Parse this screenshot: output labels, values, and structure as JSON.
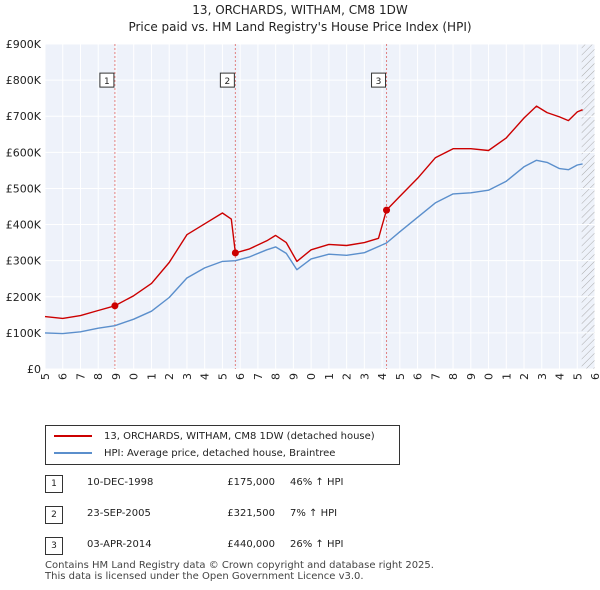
{
  "chart_data": {
    "type": "line",
    "title": "13, ORCHARDS, WITHAM, CM8 1DW",
    "subtitle": "Price paid vs. HM Land Registry's House Price Index (HPI)",
    "xlim": [
      1995,
      2026
    ],
    "ylim": [
      0,
      900000
    ],
    "x_ticks": [
      "1995",
      "1996",
      "1997",
      "1998",
      "1999",
      "2000",
      "2001",
      "2002",
      "2003",
      "2004",
      "2005",
      "2006",
      "2007",
      "2008",
      "2009",
      "2010",
      "2011",
      "2012",
      "2013",
      "2014",
      "2015",
      "2016",
      "2017",
      "2018",
      "2019",
      "2020",
      "2021",
      "2022",
      "2023",
      "2024",
      "2025",
      "2026"
    ],
    "y_ticks": [
      {
        "value": 0,
        "label": "£0"
      },
      {
        "value": 100000,
        "label": "£100K"
      },
      {
        "value": 200000,
        "label": "£200K"
      },
      {
        "value": 300000,
        "label": "£300K"
      },
      {
        "value": 400000,
        "label": "£400K"
      },
      {
        "value": 500000,
        "label": "£500K"
      },
      {
        "value": 600000,
        "label": "£600K"
      },
      {
        "value": 700000,
        "label": "£700K"
      },
      {
        "value": 800000,
        "label": "£800K"
      },
      {
        "value": 900000,
        "label": "£900K"
      }
    ],
    "hatch_from": 2025.25,
    "series": [
      {
        "name": "13, ORCHARDS, WITHAM, CM8 1DW (detached house)",
        "color": "#cc0000",
        "points": [
          [
            1995.0,
            145000
          ],
          [
            1996.0,
            140000
          ],
          [
            1997.0,
            148000
          ],
          [
            1998.0,
            162000
          ],
          [
            1998.94,
            175000
          ],
          [
            2000.0,
            203000
          ],
          [
            2001.0,
            237000
          ],
          [
            2002.0,
            295000
          ],
          [
            2003.0,
            372000
          ],
          [
            2004.0,
            402000
          ],
          [
            2005.0,
            432000
          ],
          [
            2005.5,
            415000
          ],
          [
            2005.73,
            321500
          ],
          [
            2006.5,
            332000
          ],
          [
            2007.5,
            355000
          ],
          [
            2008.0,
            370000
          ],
          [
            2008.6,
            350000
          ],
          [
            2009.2,
            298000
          ],
          [
            2010.0,
            330000
          ],
          [
            2011.0,
            345000
          ],
          [
            2012.0,
            342000
          ],
          [
            2013.0,
            350000
          ],
          [
            2013.8,
            362000
          ],
          [
            2014.25,
            440000
          ],
          [
            2015.0,
            478000
          ],
          [
            2016.0,
            528000
          ],
          [
            2017.0,
            585000
          ],
          [
            2018.0,
            610000
          ],
          [
            2019.0,
            610000
          ],
          [
            2020.0,
            605000
          ],
          [
            2021.0,
            640000
          ],
          [
            2022.0,
            695000
          ],
          [
            2022.7,
            728000
          ],
          [
            2023.3,
            710000
          ],
          [
            2024.0,
            698000
          ],
          [
            2024.5,
            688000
          ],
          [
            2025.0,
            712000
          ],
          [
            2025.3,
            718000
          ]
        ]
      },
      {
        "name": "HPI: Average price, detached house, Braintree",
        "color": "#5b8fcc",
        "points": [
          [
            1995.0,
            100000
          ],
          [
            1996.0,
            98000
          ],
          [
            1997.0,
            103000
          ],
          [
            1998.0,
            113000
          ],
          [
            1998.94,
            120000
          ],
          [
            2000.0,
            138000
          ],
          [
            2001.0,
            160000
          ],
          [
            2002.0,
            198000
          ],
          [
            2003.0,
            252000
          ],
          [
            2004.0,
            280000
          ],
          [
            2005.0,
            298000
          ],
          [
            2005.73,
            300000
          ],
          [
            2006.5,
            310000
          ],
          [
            2007.5,
            330000
          ],
          [
            2008.0,
            338000
          ],
          [
            2008.6,
            320000
          ],
          [
            2009.2,
            275000
          ],
          [
            2010.0,
            305000
          ],
          [
            2011.0,
            318000
          ],
          [
            2012.0,
            315000
          ],
          [
            2013.0,
            322000
          ],
          [
            2014.25,
            349000
          ],
          [
            2015.0,
            380000
          ],
          [
            2016.0,
            420000
          ],
          [
            2017.0,
            460000
          ],
          [
            2018.0,
            485000
          ],
          [
            2019.0,
            488000
          ],
          [
            2020.0,
            495000
          ],
          [
            2021.0,
            520000
          ],
          [
            2022.0,
            560000
          ],
          [
            2022.7,
            578000
          ],
          [
            2023.3,
            572000
          ],
          [
            2024.0,
            555000
          ],
          [
            2024.5,
            552000
          ],
          [
            2025.0,
            565000
          ],
          [
            2025.3,
            568000
          ]
        ]
      }
    ],
    "markers": [
      {
        "label": "1",
        "x": 1998.94,
        "y": 175000
      },
      {
        "label": "2",
        "x": 2005.73,
        "y": 321500
      },
      {
        "label": "3",
        "x": 2014.25,
        "y": 440000
      }
    ],
    "marker_box_value": 800000
  },
  "legend": {
    "property_label": "13, ORCHARDS, WITHAM, CM8 1DW (detached house)",
    "hpi_label": "HPI: Average price, detached house, Braintree"
  },
  "transactions": [
    {
      "num": "1",
      "date": "10-DEC-1998",
      "price": "£175,000",
      "hpi": "46% ↑ HPI"
    },
    {
      "num": "2",
      "date": "23-SEP-2005",
      "price": "£321,500",
      "hpi": "7% ↑ HPI"
    },
    {
      "num": "3",
      "date": "03-APR-2014",
      "price": "£440,000",
      "hpi": "26% ↑ HPI"
    }
  ],
  "footer": {
    "line1": "Contains HM Land Registry data © Crown copyright and database right 2025.",
    "line2": "This data is licensed under the Open Government Licence v3.0."
  }
}
